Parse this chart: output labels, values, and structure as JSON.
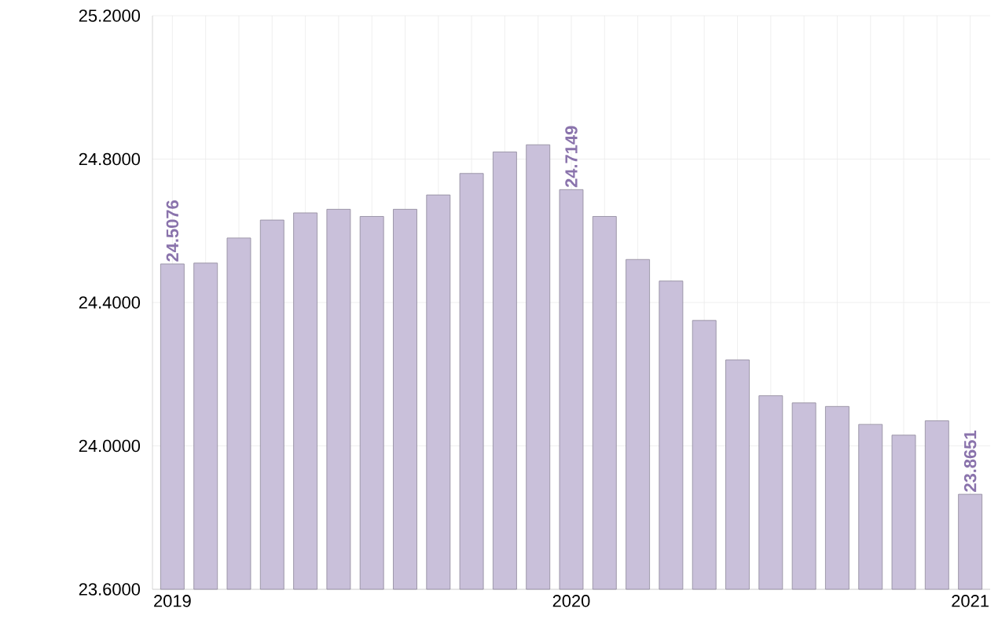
{
  "chart_data": {
    "type": "bar",
    "categories": [
      "2019",
      null,
      null,
      null,
      null,
      null,
      null,
      null,
      null,
      null,
      null,
      null,
      "2020",
      null,
      null,
      null,
      null,
      null,
      null,
      null,
      null,
      null,
      null,
      null,
      "2021"
    ],
    "values": [
      24.5076,
      24.51,
      24.58,
      24.63,
      24.65,
      24.66,
      24.64,
      24.66,
      24.7,
      24.76,
      24.82,
      24.84,
      24.7149,
      24.64,
      24.52,
      24.46,
      24.35,
      24.24,
      24.14,
      24.12,
      24.11,
      24.06,
      24.03,
      24.07,
      23.8651
    ],
    "value_labels": [
      "24.5076",
      null,
      null,
      null,
      null,
      null,
      null,
      null,
      null,
      null,
      null,
      null,
      "24.7149",
      null,
      null,
      null,
      null,
      null,
      null,
      null,
      null,
      null,
      null,
      null,
      "23.8651"
    ],
    "color": "#c9c0da",
    "ylim": [
      23.6,
      25.2
    ],
    "yticks": [
      {
        "value": 23.6,
        "label": "23.6000"
      },
      {
        "value": 24.0,
        "label": "24.0000"
      },
      {
        "value": 24.4,
        "label": "24.4000"
      },
      {
        "value": 24.8,
        "label": "24.8000"
      },
      {
        "value": 25.2,
        "label": "25.2000"
      }
    ],
    "grid": true
  }
}
